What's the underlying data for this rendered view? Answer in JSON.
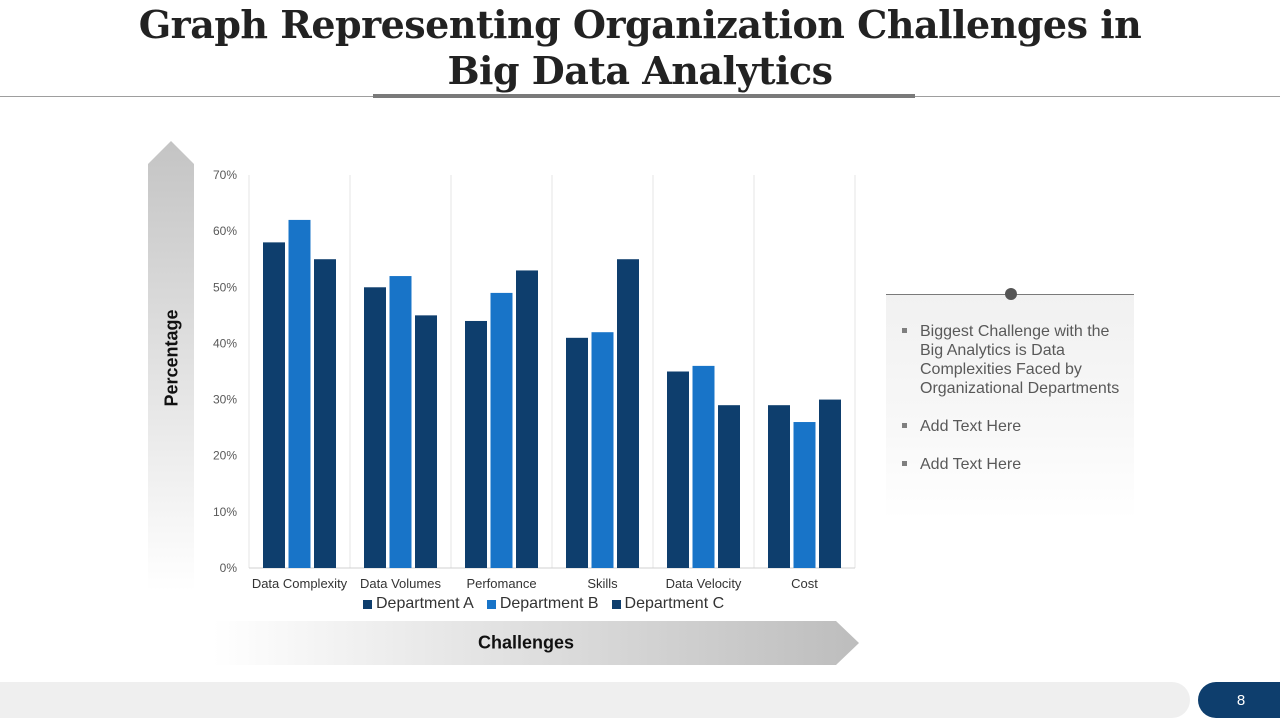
{
  "slide": {
    "title_line1": "Graph Representing Organization Challenges in",
    "title_line2": "Big Data Analytics",
    "page_number": "8"
  },
  "axis_labels": {
    "y": "Percentage",
    "x": "Challenges"
  },
  "notes": [
    "Biggest Challenge with the Big Analytics is Data Complexities Faced by Organizational Departments",
    "Add Text Here",
    "Add Text Here"
  ],
  "colors": {
    "department_a": "#0e3e6d",
    "department_b": "#1874c8",
    "department_c": "#0e3e6d",
    "badge": "#0e3e6d"
  },
  "chart_data": {
    "type": "bar",
    "title": "",
    "xlabel": "Challenges",
    "ylabel": "Percentage",
    "ylim": [
      0,
      70
    ],
    "y_ticks": [
      "0%",
      "10%",
      "20%",
      "30%",
      "40%",
      "50%",
      "60%",
      "70%"
    ],
    "categories": [
      "Data Complexity",
      "Data Volumes",
      "Perfomance",
      "Skills",
      "Data Velocity",
      "Cost"
    ],
    "series": [
      {
        "name": "Department A",
        "values": [
          58,
          50,
          44,
          41,
          35,
          29
        ]
      },
      {
        "name": "Department B",
        "values": [
          62,
          52,
          49,
          42,
          36,
          26
        ]
      },
      {
        "name": "Department C",
        "values": [
          55,
          45,
          53,
          55,
          29,
          30
        ]
      }
    ],
    "legend_position": "bottom",
    "grid": "vertical category separators"
  }
}
